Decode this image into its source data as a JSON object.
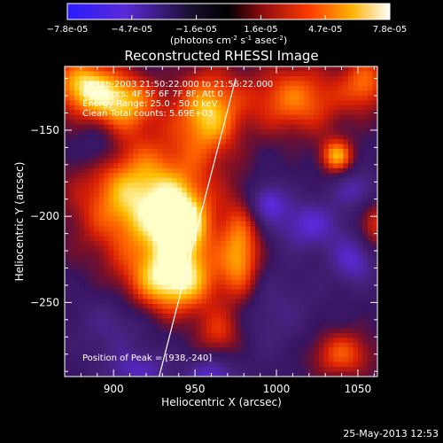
{
  "chart_data": {
    "type": "heatmap",
    "title": "Reconstructed RHESSI Image",
    "xlabel": "Heliocentric X (arcsec)",
    "ylabel": "Heliocentric Y (arcsec)",
    "xlim": [
      870,
      1062
    ],
    "ylim": [
      -293,
      -113
    ],
    "x_ticks": [
      900,
      950,
      1000,
      1050
    ],
    "y_ticks": [
      -150,
      -200,
      -250
    ],
    "colorbar": {
      "ticks": [
        "-7.8e-05",
        "-4.7e-05",
        "-1.6e-05",
        "1.6e-05",
        "4.7e-05",
        "7.8e-05"
      ],
      "label_prefix": "(photons cm",
      "sup1": "-2",
      "label_mid": " s",
      "sup2": "-1",
      "label_mid2": " asec",
      "sup3": "-2",
      "label_suffix": ")",
      "range": [
        -7.8e-05,
        7.8e-05
      ]
    },
    "annotations": [
      "14-Jan-2003 21:50:22.000 to 21:56:22.000",
      "Detectors: 4F 5F 6F 7F 8F, Att 0",
      "Energy Range: 25.0 - 50.0 keV",
      "Clean     Total counts: 5.69E+03"
    ],
    "peak_label": "Position of Peak = [938,-240]",
    "limb_line": {
      "x": [
        928,
        975
      ],
      "y": [
        -293,
        -120
      ]
    },
    "blobs": [
      {
        "x": 918,
        "y": -190,
        "sx": 28,
        "sy": 25,
        "a": 1.0
      },
      {
        "x": 937,
        "y": -238,
        "sx": 20,
        "sy": 14,
        "a": 1.0
      },
      {
        "x": 958,
        "y": -140,
        "sx": 14,
        "sy": 18,
        "a": 0.85
      },
      {
        "x": 880,
        "y": -123,
        "sx": 14,
        "sy": 12,
        "a": 0.8
      },
      {
        "x": 905,
        "y": -133,
        "sx": 16,
        "sy": 12,
        "a": 0.8
      },
      {
        "x": 942,
        "y": -205,
        "sx": 12,
        "sy": 14,
        "a": 0.75
      },
      {
        "x": 978,
        "y": -222,
        "sx": 9,
        "sy": 20,
        "a": 0.75
      },
      {
        "x": 1012,
        "y": -132,
        "sx": 22,
        "sy": 15,
        "a": 0.7
      },
      {
        "x": 1055,
        "y": -122,
        "sx": 10,
        "sy": 12,
        "a": 0.6
      },
      {
        "x": 1037,
        "y": -165,
        "sx": 7,
        "sy": 7,
        "a": 0.8
      },
      {
        "x": 1040,
        "y": -280,
        "sx": 14,
        "sy": 10,
        "a": 0.6
      },
      {
        "x": 965,
        "y": -268,
        "sx": 10,
        "sy": 10,
        "a": 0.5
      },
      {
        "x": 1060,
        "y": -205,
        "sx": 8,
        "sy": 12,
        "a": 0.5
      },
      {
        "x": 995,
        "y": -192,
        "sx": 8,
        "sy": 8,
        "a": -0.6
      },
      {
        "x": 1020,
        "y": -205,
        "sx": 14,
        "sy": 10,
        "a": -0.55
      },
      {
        "x": 1048,
        "y": -225,
        "sx": 10,
        "sy": 10,
        "a": -0.55
      },
      {
        "x": 1050,
        "y": -185,
        "sx": 10,
        "sy": 8,
        "a": -0.45
      },
      {
        "x": 960,
        "y": -293,
        "sx": 10,
        "sy": 8,
        "a": -0.55
      },
      {
        "x": 915,
        "y": -290,
        "sx": 14,
        "sy": 8,
        "a": -0.45
      },
      {
        "x": 890,
        "y": -160,
        "sx": 10,
        "sy": 10,
        "a": -0.35
      },
      {
        "x": 900,
        "y": -262,
        "sx": 16,
        "sy": 14,
        "a": -0.3
      },
      {
        "x": 995,
        "y": -255,
        "sx": 20,
        "sy": 18,
        "a": -0.25
      }
    ]
  },
  "footer": {
    "timestamp": "25-May-2013 12:53"
  }
}
